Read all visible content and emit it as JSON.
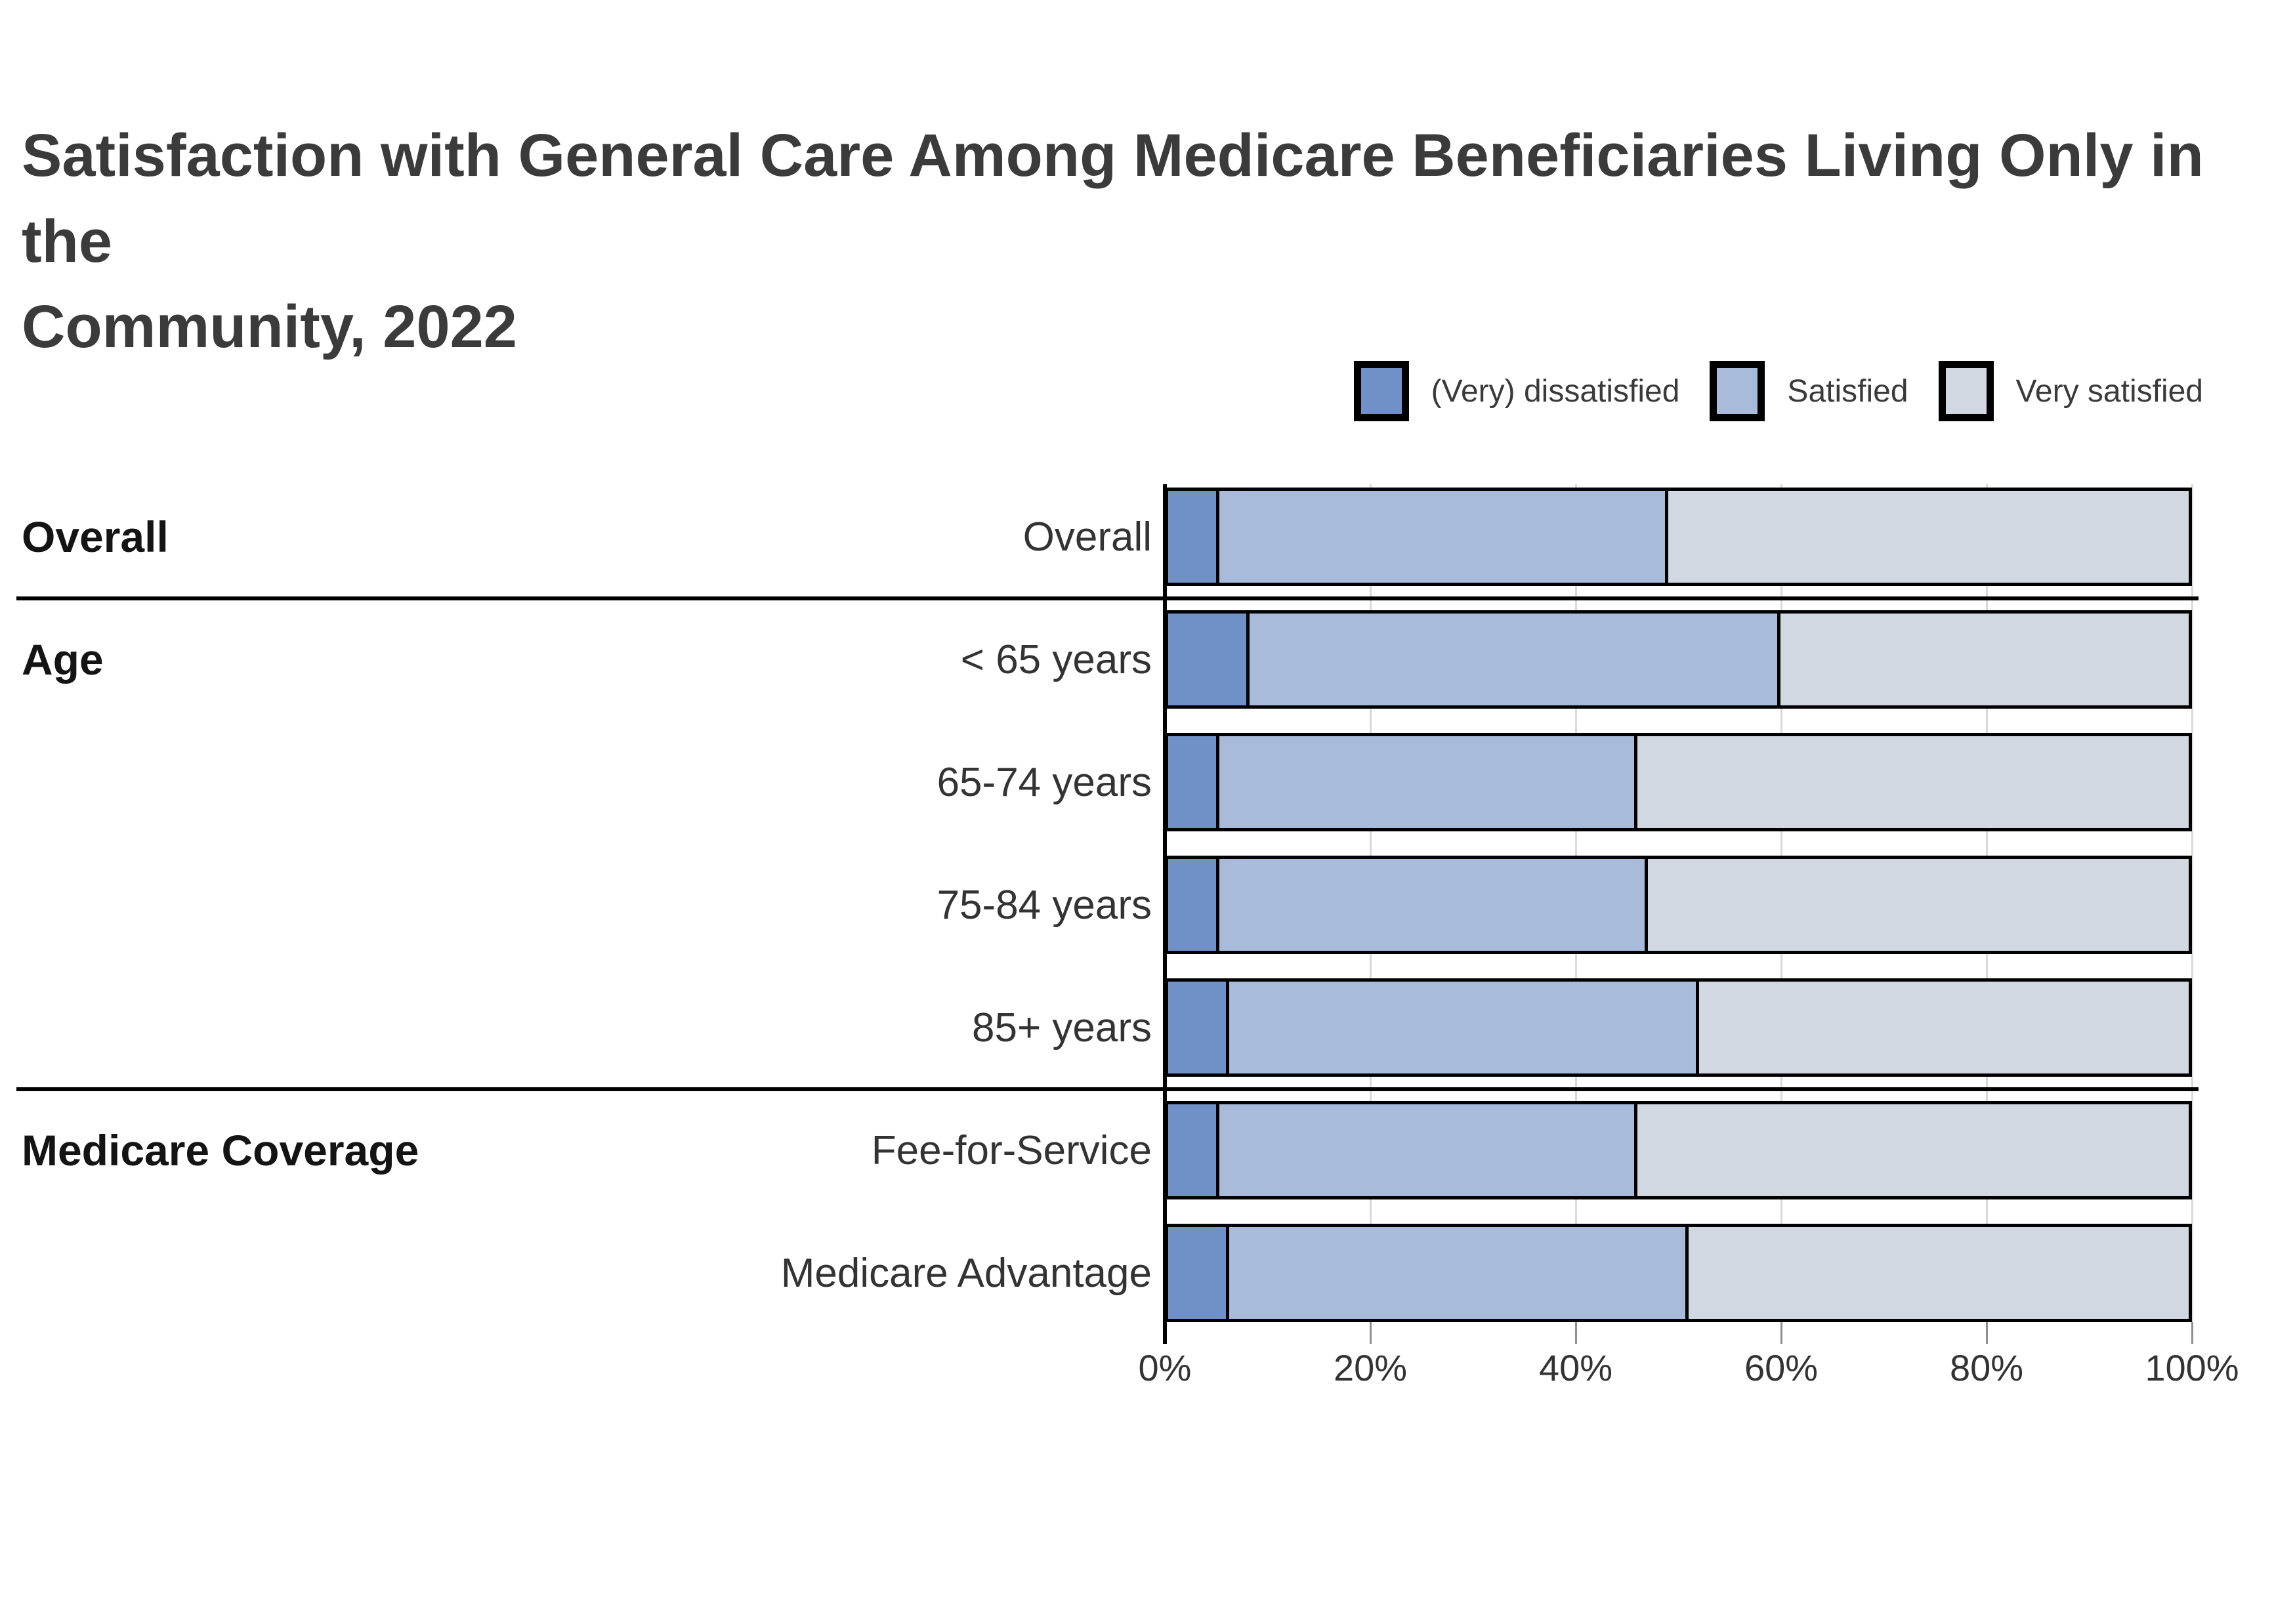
{
  "title": {
    "lines": [
      "Satisfaction with General Care Among Medicare Beneficiaries Living Only in the",
      "Community, 2022"
    ]
  },
  "chart_data": {
    "type": "bar",
    "stacked": true,
    "orientation": "horizontal",
    "title": "Satisfaction with General Care Among Medicare Beneficiaries Living Only in the Community, 2022",
    "categories": [
      "Overall",
      "< 65 years",
      "65-74 years",
      "75-84 years",
      "85+ years",
      "Fee-for-Service",
      "Medicare Advantage"
    ],
    "groups": [
      {
        "label": "Overall",
        "first_row": 0
      },
      {
        "label": "Age",
        "first_row": 1
      },
      {
        "label": "Medicare Coverage",
        "first_row": 5
      }
    ],
    "series": [
      {
        "name": "(Very) dissatisfied",
        "color": "#7090c8",
        "values": [
          5,
          8,
          5,
          5,
          6,
          5,
          6
        ]
      },
      {
        "name": "Satisfied",
        "color": "#a8bbdb",
        "values": [
          44,
          52,
          41,
          42,
          46,
          41,
          45
        ]
      },
      {
        "name": "Very satisfied",
        "color": "#d2d8e1",
        "values": [
          51,
          40,
          54,
          53,
          48,
          54,
          49
        ]
      }
    ],
    "x_axis": {
      "tick_labels": [
        "0%",
        "20%",
        "40%",
        "60%",
        "80%",
        "100%"
      ],
      "min": 0,
      "max": 100,
      "grid": true
    },
    "legend_position": "top-right"
  },
  "style": {
    "bar_border": "#000000",
    "gridline": "#d9d9d9",
    "axis_line": "#000000",
    "title_color": "#3b3b3b",
    "text_color": "#333333",
    "background": "#ffffff"
  }
}
